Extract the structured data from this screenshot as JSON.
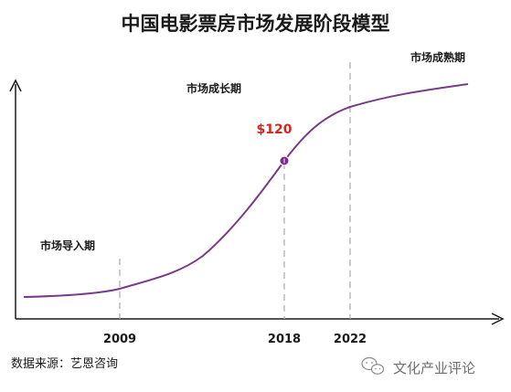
{
  "title": "中国电影票房市场发展阶段模型",
  "stages": {
    "intro": "市场导入期",
    "growth": "市场成长期",
    "mature": "市场成熟期"
  },
  "years": [
    "2009",
    "2018",
    "2022"
  ],
  "price_label": "$120",
  "source": "数据来源：艺恩咨询",
  "watermark": "文化产业评论",
  "colors": {
    "curve": "#7a3b8c",
    "marker": "#7a2a8a",
    "price": "#d9241c",
    "guide": "#b0b0b0",
    "axis": "#1a1a1a"
  },
  "icons": {
    "watermark": "wechat-icon"
  }
}
